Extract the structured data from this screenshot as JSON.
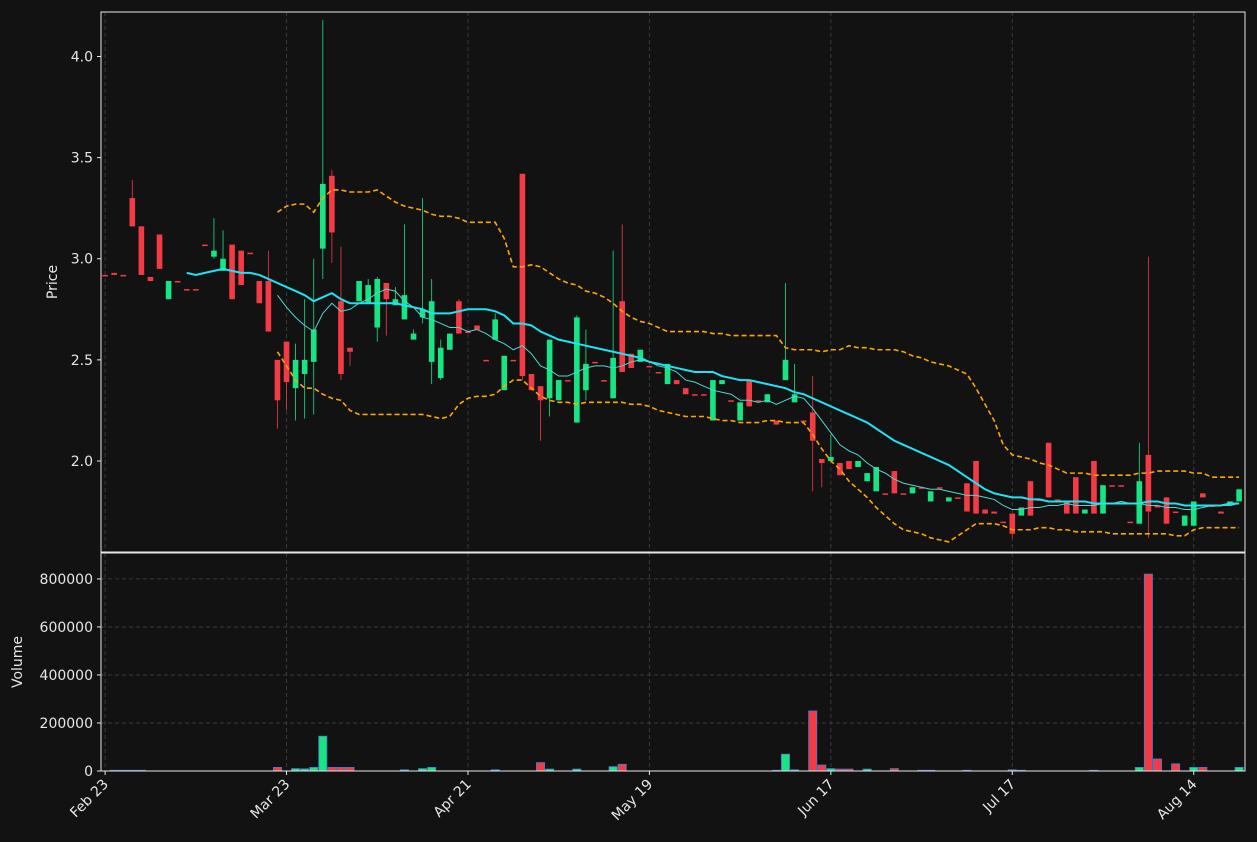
{
  "chart_data": {
    "type": "candlestick",
    "ylabel": "Price",
    "volume_ylabel": "Volume",
    "grid": true,
    "up_color": "#18e484",
    "down_color": "#f23b45",
    "ylim": [
      1.55,
      4.22
    ],
    "yticks": [
      {
        "value": 2,
        "label": "2.0"
      },
      {
        "value": 2.5,
        "label": "2.5"
      },
      {
        "value": 3,
        "label": "3.0"
      },
      {
        "value": 3.5,
        "label": "3.5"
      },
      {
        "value": 4,
        "label": "4.0"
      }
    ],
    "volume_ylim": [
      0,
      908000
    ],
    "volume_yticks": [
      0,
      200000,
      400000,
      600000,
      800000
    ],
    "categories": [
      "Feb 23",
      null,
      null,
      null,
      null,
      null,
      null,
      null,
      null,
      null,
      null,
      null,
      null,
      null,
      null,
      null,
      null,
      null,
      null,
      null,
      "Mar 23",
      null,
      null,
      null,
      null,
      null,
      null,
      null,
      null,
      null,
      null,
      null,
      null,
      null,
      null,
      null,
      null,
      null,
      null,
      null,
      "Apr 21",
      null,
      null,
      null,
      null,
      null,
      null,
      null,
      null,
      null,
      null,
      null,
      null,
      null,
      null,
      null,
      null,
      null,
      null,
      null,
      "May 19",
      null,
      null,
      null,
      null,
      null,
      null,
      null,
      null,
      null,
      null,
      null,
      null,
      null,
      null,
      null,
      null,
      null,
      null,
      null,
      "Jun 17",
      null,
      null,
      null,
      null,
      null,
      null,
      null,
      null,
      null,
      null,
      null,
      null,
      null,
      null,
      null,
      null,
      null,
      null,
      null,
      "Jul 17",
      null,
      null,
      null,
      null,
      null,
      null,
      null,
      null,
      null,
      null,
      null,
      null,
      null,
      null,
      null,
      null,
      null,
      null,
      null,
      "Aug 14",
      null,
      null,
      null,
      null,
      null
    ],
    "open": [
      2.92,
      2.93,
      2.92,
      3.3,
      3.16,
      2.91,
      3.12,
      2.8,
      2.89,
      2.85,
      2.85,
      3.07,
      3.01,
      2.94,
      3.07,
      3.04,
      3.03,
      2.89,
      2.89,
      2.5,
      2.59,
      2.36,
      2.43,
      2.49,
      3.05,
      3.41,
      2.79,
      2.56,
      2.79,
      2.78,
      2.66,
      2.88,
      2.77,
      2.7,
      2.6,
      2.71,
      2.49,
      2.41,
      2.55,
      2.79,
      2.64,
      2.67,
      2.5,
      2.6,
      2.35,
      2.5,
      3.42,
      2.43,
      2.37,
      2.31,
      2.3,
      2.4,
      2.19,
      2.35,
      2.49,
      2.4,
      2.31,
      2.79,
      2.53,
      2.49,
      2.47,
      2.44,
      2.38,
      2.4,
      2.36,
      2.33,
      2.33,
      2.2,
      2.38,
      2.3,
      2.2,
      2.4,
      2.3,
      2.29,
      2.2,
      2.4,
      2.29,
      2.2,
      2.24,
      2.01,
      2.0,
      1.99,
      2.0,
      1.97,
      1.9,
      1.85,
      1.84,
      1.95,
      1.84,
      1.84,
      1.87,
      1.8,
      1.87,
      1.8,
      1.82,
      1.89,
      2.0,
      1.76,
      1.75,
      1.7,
      1.74,
      1.73,
      1.9,
      1.81,
      2.09,
      1.81,
      1.8,
      1.92,
      1.74,
      2.0,
      1.74,
      1.88,
      1.88,
      1.7,
      1.69,
      2.03,
      1.78,
      1.82,
      1.75,
      1.68,
      1.68,
      1.84,
      1.78,
      1.75,
      1.78,
      1.8
    ],
    "high": [
      2.92,
      2.93,
      2.92,
      3.39,
      3.16,
      2.91,
      3.12,
      2.89,
      2.89,
      2.85,
      2.85,
      3.07,
      3.2,
      3.14,
      3.07,
      3.04,
      3.03,
      2.89,
      3.04,
      2.5,
      2.59,
      2.58,
      2.8,
      3.0,
      4.18,
      3.44,
      3.06,
      2.56,
      2.89,
      2.9,
      2.91,
      2.88,
      2.86,
      3.17,
      2.65,
      3.3,
      2.9,
      2.6,
      2.63,
      2.8,
      2.64,
      2.67,
      2.5,
      2.73,
      2.52,
      2.5,
      3.42,
      2.43,
      2.37,
      2.6,
      2.4,
      2.4,
      2.72,
      2.65,
      2.49,
      2.4,
      3.04,
      3.17,
      2.53,
      2.55,
      2.47,
      2.44,
      2.48,
      2.4,
      2.36,
      2.33,
      2.33,
      2.4,
      2.4,
      2.3,
      2.29,
      2.4,
      2.3,
      2.33,
      2.2,
      2.88,
      2.48,
      2.2,
      2.42,
      2.01,
      2.13,
      1.99,
      2.0,
      2.0,
      1.94,
      1.97,
      1.84,
      1.95,
      1.84,
      1.87,
      1.87,
      1.85,
      1.87,
      1.82,
      1.82,
      1.89,
      2.0,
      1.76,
      1.75,
      1.7,
      1.74,
      1.77,
      1.9,
      1.81,
      2.09,
      1.81,
      1.8,
      1.92,
      1.76,
      2.0,
      1.88,
      1.88,
      1.88,
      1.7,
      2.09,
      3.01,
      1.78,
      1.82,
      1.75,
      1.73,
      1.8,
      1.84,
      1.78,
      1.75,
      1.8,
      1.86
    ],
    "low": [
      2.92,
      2.92,
      2.92,
      3.16,
      2.92,
      2.89,
      2.95,
      2.8,
      2.89,
      2.85,
      2.85,
      3.07,
      3.0,
      2.94,
      2.8,
      2.87,
      3.03,
      2.78,
      2.64,
      2.16,
      2.25,
      2.2,
      2.21,
      2.23,
      2.9,
      2.98,
      2.4,
      2.47,
      2.79,
      2.78,
      2.59,
      2.62,
      2.77,
      2.7,
      2.6,
      2.68,
      2.38,
      2.4,
      2.55,
      2.63,
      2.64,
      2.65,
      2.5,
      2.6,
      2.35,
      2.5,
      2.4,
      2.35,
      2.1,
      2.22,
      2.3,
      2.4,
      2.19,
      2.3,
      2.49,
      2.4,
      2.31,
      2.44,
      2.46,
      2.49,
      2.47,
      2.44,
      2.38,
      2.38,
      2.33,
      2.33,
      2.33,
      2.2,
      2.38,
      2.3,
      2.2,
      2.27,
      2.3,
      2.29,
      2.18,
      2.4,
      2.29,
      2.2,
      1.85,
      1.87,
      2.0,
      1.93,
      1.96,
      1.97,
      1.9,
      1.85,
      1.84,
      1.84,
      1.84,
      1.84,
      1.87,
      1.8,
      1.87,
      1.8,
      1.82,
      1.75,
      1.74,
      1.74,
      1.74,
      1.7,
      1.62,
      1.73,
      1.73,
      1.81,
      1.82,
      1.81,
      1.74,
      1.74,
      1.74,
      1.74,
      1.74,
      1.88,
      1.88,
      1.7,
      1.69,
      1.62,
      1.77,
      1.69,
      1.75,
      1.68,
      1.68,
      1.82,
      1.78,
      1.74,
      1.78,
      1.8
    ],
    "close": [
      2.92,
      2.92,
      2.92,
      3.16,
      2.92,
      2.89,
      2.95,
      2.89,
      2.89,
      2.85,
      2.85,
      3.07,
      3.04,
      3.0,
      2.8,
      2.87,
      3.03,
      2.78,
      2.64,
      2.3,
      2.39,
      2.5,
      2.5,
      2.65,
      3.37,
      3.13,
      2.43,
      2.54,
      2.89,
      2.87,
      2.9,
      2.8,
      2.8,
      2.82,
      2.63,
      2.75,
      2.79,
      2.56,
      2.63,
      2.63,
      2.64,
      2.65,
      2.5,
      2.7,
      2.52,
      2.5,
      2.42,
      2.35,
      2.3,
      2.6,
      2.4,
      2.4,
      2.71,
      2.48,
      2.49,
      2.4,
      2.51,
      2.44,
      2.46,
      2.55,
      2.47,
      2.44,
      2.48,
      2.38,
      2.33,
      2.33,
      2.33,
      2.4,
      2.4,
      2.3,
      2.29,
      2.27,
      2.3,
      2.33,
      2.18,
      2.5,
      2.33,
      2.2,
      2.1,
      1.99,
      2.02,
      1.93,
      1.96,
      2.0,
      1.94,
      1.97,
      1.84,
      1.84,
      1.84,
      1.87,
      1.87,
      1.85,
      1.87,
      1.82,
      1.82,
      1.75,
      1.74,
      1.74,
      1.74,
      1.7,
      1.64,
      1.77,
      1.73,
      1.81,
      1.82,
      1.81,
      1.74,
      1.74,
      1.76,
      1.74,
      1.88,
      1.88,
      1.88,
      1.7,
      1.9,
      1.75,
      1.77,
      1.69,
      1.75,
      1.73,
      1.8,
      1.82,
      1.78,
      1.74,
      1.8,
      1.86
    ],
    "volume": [
      0,
      3000,
      3000,
      3000,
      3000,
      0,
      0,
      0,
      0,
      0,
      0,
      0,
      0,
      0,
      0,
      0,
      0,
      0,
      0,
      15000,
      0,
      10000,
      9000,
      15000,
      145000,
      15000,
      15000,
      15000,
      0,
      0,
      0,
      0,
      0,
      5000,
      0,
      10000,
      15000,
      0,
      0,
      0,
      0,
      0,
      0,
      5000,
      0,
      0,
      0,
      0,
      35000,
      8000,
      0,
      0,
      8000,
      0,
      0,
      0,
      18000,
      28000,
      0,
      0,
      0,
      0,
      0,
      0,
      0,
      0,
      0,
      0,
      0,
      0,
      0,
      0,
      0,
      0,
      3000,
      70000,
      5000,
      0,
      250000,
      25000,
      10000,
      8000,
      8000,
      0,
      8000,
      0,
      0,
      10000,
      0,
      0,
      3000,
      3000,
      0,
      0,
      0,
      3000,
      0,
      0,
      0,
      0,
      5000,
      3000,
      0,
      0,
      0,
      0,
      0,
      0,
      0,
      3000,
      0,
      0,
      0,
      0,
      15000,
      820000,
      50000,
      0,
      30000,
      0,
      15000,
      15000,
      0,
      0,
      0,
      15000
    ],
    "lines": [
      {
        "color": "#1ee3f5",
        "width": 2,
        "style": "solid",
        "values": [
          null,
          null,
          null,
          null,
          null,
          null,
          null,
          null,
          null,
          2.93,
          2.92,
          2.93,
          2.94,
          2.95,
          2.94,
          2.93,
          2.93,
          2.92,
          2.9,
          2.88,
          2.86,
          2.84,
          2.82,
          2.79,
          2.81,
          2.83,
          2.8,
          2.78,
          2.78,
          2.78,
          2.78,
          2.78,
          2.78,
          2.77,
          2.76,
          2.75,
          2.73,
          2.73,
          2.73,
          2.74,
          2.75,
          2.75,
          2.75,
          2.74,
          2.72,
          2.68,
          2.68,
          2.67,
          2.64,
          2.62,
          2.6,
          2.59,
          2.58,
          2.57,
          2.56,
          2.55,
          2.54,
          2.53,
          2.52,
          2.51,
          2.49,
          2.48,
          2.47,
          2.46,
          2.45,
          2.44,
          2.44,
          2.44,
          2.42,
          2.41,
          2.4,
          2.4,
          2.39,
          2.38,
          2.37,
          2.36,
          2.34,
          2.33,
          2.31,
          2.29,
          2.27,
          2.25,
          2.23,
          2.21,
          2.19,
          2.16,
          2.13,
          2.1,
          2.08,
          2.06,
          2.04,
          2.02,
          2.0,
          1.98,
          1.95,
          1.92,
          1.89,
          1.86,
          1.84,
          1.83,
          1.82,
          1.82,
          1.81,
          1.81,
          1.8,
          1.8,
          1.8,
          1.8,
          1.8,
          1.79,
          1.79,
          1.79,
          1.79,
          1.79,
          1.79,
          1.8,
          1.8,
          1.79,
          1.79,
          1.78,
          1.78,
          1.78,
          1.78,
          1.78,
          1.79,
          1.79
        ]
      },
      {
        "color": "#4fd6cf",
        "width": 1,
        "style": "solid",
        "values": [
          null,
          null,
          null,
          null,
          null,
          null,
          null,
          null,
          null,
          null,
          null,
          null,
          null,
          null,
          null,
          null,
          null,
          null,
          null,
          2.82,
          2.76,
          2.71,
          2.67,
          2.64,
          2.73,
          2.78,
          2.74,
          2.75,
          2.78,
          2.8,
          2.83,
          2.85,
          2.84,
          2.79,
          2.76,
          2.71,
          2.7,
          2.68,
          2.66,
          2.66,
          2.64,
          2.65,
          2.63,
          2.6,
          2.58,
          2.55,
          2.57,
          2.53,
          2.47,
          2.45,
          2.42,
          2.42,
          2.44,
          2.46,
          2.47,
          2.47,
          2.46,
          2.47,
          2.49,
          2.5,
          2.49,
          2.47,
          2.46,
          2.44,
          2.4,
          2.39,
          2.37,
          2.35,
          2.34,
          2.33,
          2.3,
          2.3,
          2.29,
          2.3,
          2.28,
          2.3,
          2.32,
          2.31,
          2.26,
          2.2,
          2.14,
          2.08,
          2.05,
          2.03,
          1.99,
          1.96,
          1.94,
          1.91,
          1.89,
          1.88,
          1.87,
          1.86,
          1.86,
          1.85,
          1.84,
          1.83,
          1.83,
          1.82,
          1.81,
          1.78,
          1.76,
          1.76,
          1.77,
          1.77,
          1.78,
          1.78,
          1.79,
          1.78,
          1.78,
          1.78,
          1.79,
          1.79,
          1.8,
          1.79,
          1.79,
          1.78,
          1.78,
          1.77,
          1.77,
          1.76,
          1.76,
          1.77,
          1.78,
          1.78,
          1.78,
          1.79
        ]
      },
      {
        "color": "#ffa500",
        "width": 1.6,
        "style": "dashed",
        "values": [
          null,
          null,
          null,
          null,
          null,
          null,
          null,
          null,
          null,
          null,
          null,
          null,
          null,
          null,
          null,
          null,
          null,
          null,
          null,
          3.23,
          3.26,
          3.27,
          3.27,
          3.23,
          3.3,
          3.34,
          3.34,
          3.33,
          3.33,
          3.33,
          3.34,
          3.31,
          3.28,
          3.26,
          3.25,
          3.24,
          3.22,
          3.21,
          3.21,
          3.2,
          3.18,
          3.18,
          3.18,
          3.18,
          3.1,
          2.96,
          2.96,
          2.97,
          2.96,
          2.93,
          2.9,
          2.88,
          2.87,
          2.84,
          2.83,
          2.81,
          2.78,
          2.74,
          2.71,
          2.69,
          2.68,
          2.66,
          2.64,
          2.64,
          2.64,
          2.64,
          2.64,
          2.63,
          2.63,
          2.62,
          2.62,
          2.62,
          2.62,
          2.62,
          2.62,
          2.56,
          2.55,
          2.55,
          2.55,
          2.54,
          2.55,
          2.55,
          2.57,
          2.56,
          2.56,
          2.55,
          2.55,
          2.55,
          2.54,
          2.52,
          2.51,
          2.49,
          2.48,
          2.47,
          2.45,
          2.43,
          2.36,
          2.28,
          2.2,
          2.08,
          2.03,
          2.02,
          2.01,
          1.99,
          1.98,
          1.96,
          1.94,
          1.94,
          1.94,
          1.93,
          1.93,
          1.93,
          1.93,
          1.93,
          1.94,
          1.94,
          1.95,
          1.95,
          1.95,
          1.95,
          1.94,
          1.94,
          1.92,
          1.92,
          1.92,
          1.92
        ]
      },
      {
        "color": "#ffa500",
        "width": 1.6,
        "style": "dashed",
        "values": [
          null,
          null,
          null,
          null,
          null,
          null,
          null,
          null,
          null,
          null,
          null,
          null,
          null,
          null,
          null,
          null,
          null,
          null,
          null,
          2.54,
          2.47,
          2.4,
          2.36,
          2.36,
          2.33,
          2.31,
          2.3,
          2.25,
          2.23,
          2.23,
          2.23,
          2.23,
          2.23,
          2.23,
          2.23,
          2.23,
          2.22,
          2.21,
          2.22,
          2.28,
          2.31,
          2.32,
          2.32,
          2.33,
          2.37,
          2.4,
          2.4,
          2.36,
          2.32,
          2.3,
          2.29,
          2.29,
          2.28,
          2.29,
          2.29,
          2.29,
          2.29,
          2.29,
          2.28,
          2.28,
          2.27,
          2.25,
          2.24,
          2.23,
          2.22,
          2.22,
          2.22,
          2.21,
          2.2,
          2.2,
          2.19,
          2.19,
          2.19,
          2.2,
          2.2,
          2.19,
          2.19,
          2.19,
          2.13,
          2.06,
          2.0,
          1.96,
          1.9,
          1.86,
          1.82,
          1.77,
          1.73,
          1.69,
          1.66,
          1.65,
          1.64,
          1.62,
          1.61,
          1.6,
          1.63,
          1.66,
          1.69,
          1.69,
          1.69,
          1.68,
          1.66,
          1.66,
          1.66,
          1.67,
          1.67,
          1.66,
          1.66,
          1.65,
          1.65,
          1.65,
          1.65,
          1.64,
          1.64,
          1.64,
          1.64,
          1.64,
          1.64,
          1.64,
          1.63,
          1.63,
          1.66,
          1.67,
          1.67,
          1.67,
          1.67,
          1.67
        ]
      }
    ]
  }
}
